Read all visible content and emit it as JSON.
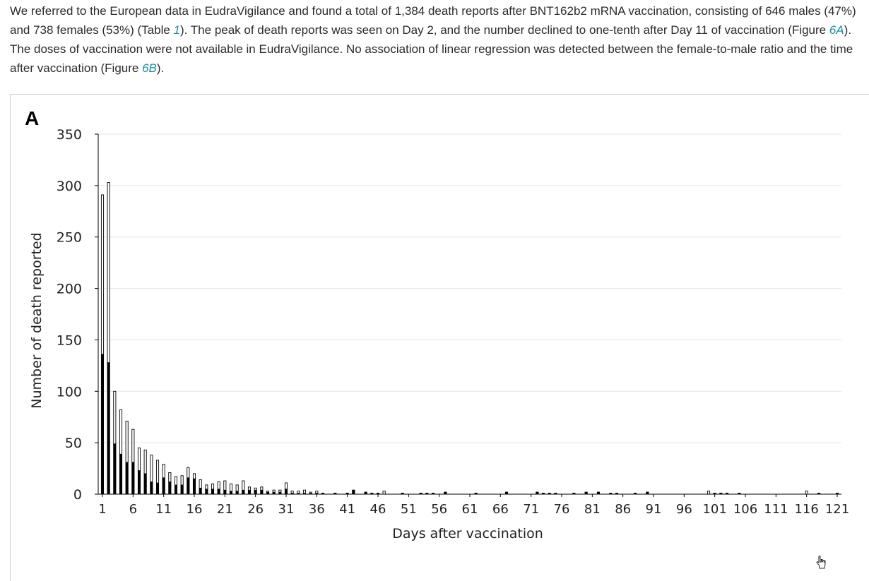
{
  "paragraph": {
    "seg1": "We referred to the European data in EudraVigilance and found a total of 1,384 death reports after BNT162b2 mRNA vaccination, consisting of 646 males (47%) and 738 females (53%) (Table ",
    "link_table": "1",
    "seg2": "). The peak of death reports was seen on Day 2, and the number declined to one-tenth after Day 11 of vaccination (Figure ",
    "link_fig_a": "6A",
    "seg3": "). The doses of vaccination were not available in EudraVigilance. No association of linear regression was detected between the female-to-male ratio and the time after vaccination (Figure ",
    "link_fig_b": "6B",
    "seg4": ")."
  },
  "icons": {
    "cursor": "hand-pointer-icon"
  },
  "colors": {
    "male_fill": "#000000",
    "total_fill": "#ffffff",
    "bar_stroke": "#000000",
    "grid": "#e6e6e6",
    "link": "#1a8fa3"
  },
  "chart_data": {
    "type": "bar",
    "panel_label": "A",
    "xlabel": "Days after vaccination",
    "ylabel": "Number of death reported",
    "ylim": [
      0,
      350
    ],
    "yticks": [
      0,
      50,
      100,
      150,
      200,
      250,
      300,
      350
    ],
    "xlim": [
      1,
      121
    ],
    "xticks": [
      1,
      6,
      11,
      16,
      21,
      26,
      31,
      36,
      41,
      46,
      51,
      56,
      61,
      66,
      71,
      76,
      81,
      86,
      91,
      96,
      101,
      106,
      111,
      116,
      121
    ],
    "grid": true,
    "stacked": true,
    "series": [
      {
        "role": "male",
        "points": [
          [
            1,
            136
          ],
          [
            2,
            128
          ],
          [
            3,
            49
          ],
          [
            4,
            39
          ],
          [
            5,
            31
          ],
          [
            6,
            31
          ],
          [
            7,
            23
          ],
          [
            8,
            20
          ],
          [
            9,
            12
          ],
          [
            10,
            11
          ],
          [
            11,
            16
          ],
          [
            12,
            12
          ],
          [
            13,
            9
          ],
          [
            14,
            9
          ],
          [
            15,
            16
          ],
          [
            16,
            15
          ],
          [
            17,
            6
          ],
          [
            18,
            5
          ],
          [
            19,
            5
          ],
          [
            20,
            5
          ],
          [
            21,
            4
          ],
          [
            22,
            3
          ],
          [
            23,
            3
          ],
          [
            24,
            4
          ],
          [
            25,
            4
          ],
          [
            26,
            4
          ],
          [
            27,
            4
          ],
          [
            28,
            2
          ],
          [
            29,
            2
          ],
          [
            30,
            2
          ],
          [
            31,
            5
          ],
          [
            32,
            1
          ],
          [
            33,
            1
          ],
          [
            34,
            1
          ],
          [
            35,
            1
          ],
          [
            36,
            1
          ],
          [
            37,
            1
          ],
          [
            39,
            1
          ],
          [
            41,
            1
          ],
          [
            42,
            4
          ],
          [
            44,
            2
          ],
          [
            45,
            1
          ],
          [
            46,
            1
          ],
          [
            50,
            1
          ],
          [
            53,
            1
          ],
          [
            54,
            1
          ],
          [
            55,
            1
          ],
          [
            57,
            2
          ],
          [
            62,
            1
          ],
          [
            67,
            2
          ],
          [
            72,
            2
          ],
          [
            73,
            1
          ],
          [
            74,
            1
          ],
          [
            75,
            1
          ],
          [
            78,
            1
          ],
          [
            80,
            2
          ],
          [
            82,
            2
          ],
          [
            84,
            1
          ],
          [
            85,
            1
          ],
          [
            88,
            1
          ],
          [
            90,
            2
          ],
          [
            101,
            1
          ],
          [
            102,
            1
          ],
          [
            103,
            1
          ],
          [
            105,
            1
          ],
          [
            118,
            1
          ],
          [
            121,
            1
          ]
        ]
      },
      {
        "role": "total",
        "points": [
          [
            1,
            291
          ],
          [
            2,
            303
          ],
          [
            3,
            100
          ],
          [
            4,
            82
          ],
          [
            5,
            71
          ],
          [
            6,
            63
          ],
          [
            7,
            45
          ],
          [
            8,
            43
          ],
          [
            9,
            38
          ],
          [
            10,
            33
          ],
          [
            11,
            29
          ],
          [
            12,
            21
          ],
          [
            13,
            17
          ],
          [
            14,
            18
          ],
          [
            15,
            26
          ],
          [
            16,
            20
          ],
          [
            17,
            14
          ],
          [
            18,
            9
          ],
          [
            19,
            10
          ],
          [
            20,
            12
          ],
          [
            21,
            13
          ],
          [
            22,
            10
          ],
          [
            23,
            9
          ],
          [
            24,
            13
          ],
          [
            25,
            7
          ],
          [
            26,
            6
          ],
          [
            27,
            7
          ],
          [
            28,
            3
          ],
          [
            29,
            4
          ],
          [
            30,
            4
          ],
          [
            31,
            11
          ],
          [
            32,
            3
          ],
          [
            33,
            3
          ],
          [
            34,
            4
          ],
          [
            35,
            2
          ],
          [
            36,
            3
          ],
          [
            37,
            1
          ],
          [
            39,
            1
          ],
          [
            41,
            1
          ],
          [
            42,
            4
          ],
          [
            44,
            2
          ],
          [
            45,
            1
          ],
          [
            46,
            1
          ],
          [
            47,
            3
          ],
          [
            50,
            1
          ],
          [
            53,
            1
          ],
          [
            54,
            1
          ],
          [
            55,
            1
          ],
          [
            57,
            2
          ],
          [
            62,
            1
          ],
          [
            67,
            2
          ],
          [
            72,
            2
          ],
          [
            73,
            1
          ],
          [
            74,
            1
          ],
          [
            75,
            1
          ],
          [
            78,
            1
          ],
          [
            80,
            2
          ],
          [
            82,
            2
          ],
          [
            84,
            1
          ],
          [
            85,
            1
          ],
          [
            88,
            1
          ],
          [
            90,
            2
          ],
          [
            100,
            3
          ],
          [
            101,
            1
          ],
          [
            102,
            1
          ],
          [
            103,
            1
          ],
          [
            105,
            1
          ],
          [
            116,
            3
          ],
          [
            118,
            1
          ],
          [
            121,
            1
          ]
        ]
      }
    ]
  }
}
